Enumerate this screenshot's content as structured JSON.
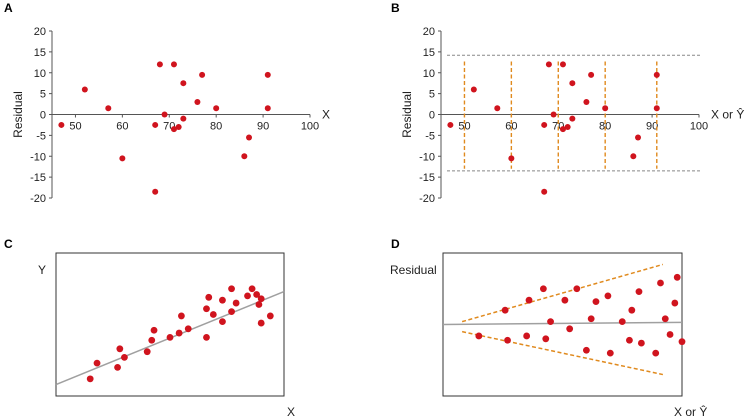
{
  "chart_data": [
    {
      "panel": "A",
      "type": "scatter",
      "xlabel": "X",
      "ylabel": "Residual",
      "xlim": [
        45,
        100
      ],
      "ylim": [
        -20,
        20
      ],
      "xticks": [
        50,
        60,
        70,
        80,
        90,
        100
      ],
      "yticks": [
        -20,
        -15,
        -10,
        -5,
        0,
        5,
        10,
        15,
        20
      ],
      "points": [
        [
          47,
          -2.5
        ],
        [
          52,
          6
        ],
        [
          57,
          1.5
        ],
        [
          60,
          -10.5
        ],
        [
          67,
          -18.5
        ],
        [
          67,
          -2.5
        ],
        [
          68,
          12
        ],
        [
          69,
          0
        ],
        [
          71,
          12
        ],
        [
          71,
          -3.5
        ],
        [
          72,
          -3
        ],
        [
          73,
          -1
        ],
        [
          73,
          7.5
        ],
        [
          76,
          3
        ],
        [
          77,
          9.5
        ],
        [
          80,
          1.5
        ],
        [
          86,
          -10
        ],
        [
          87,
          -5.5
        ],
        [
          91,
          9.5
        ],
        [
          91,
          1.5
        ]
      ]
    },
    {
      "panel": "B",
      "type": "scatter",
      "xlabel": "X or Ŷ",
      "ylabel": "Residual",
      "xlim": [
        45,
        100
      ],
      "ylim": [
        -20,
        20
      ],
      "xticks": [
        50,
        60,
        70,
        80,
        90,
        100
      ],
      "yticks": [
        -20,
        -15,
        -10,
        -5,
        0,
        5,
        10,
        15,
        20
      ],
      "band": [
        -13.5,
        14.2
      ],
      "band_lines": [
        50,
        60,
        70,
        80,
        91
      ],
      "points": [
        [
          47,
          -2.5
        ],
        [
          52,
          6
        ],
        [
          57,
          1.5
        ],
        [
          60,
          -10.5
        ],
        [
          67,
          -18.5
        ],
        [
          67,
          -2.5
        ],
        [
          68,
          12
        ],
        [
          69,
          0
        ],
        [
          71,
          12
        ],
        [
          71,
          -3.5
        ],
        [
          72,
          -3
        ],
        [
          73,
          -1
        ],
        [
          73,
          7.5
        ],
        [
          76,
          3
        ],
        [
          77,
          9.5
        ],
        [
          80,
          1.5
        ],
        [
          86,
          -10
        ],
        [
          87,
          -5.5
        ],
        [
          91,
          9.5
        ],
        [
          91,
          1.5
        ]
      ]
    },
    {
      "panel": "C",
      "type": "scatter",
      "xlabel": "X",
      "ylabel": "Y",
      "xlim": [
        0,
        10
      ],
      "ylim": [
        0,
        10
      ],
      "fit_line": [
        [
          0,
          0.8
        ],
        [
          10,
          7.3
        ]
      ],
      "points": [
        [
          1.5,
          1.2
        ],
        [
          1.8,
          2.3
        ],
        [
          2.7,
          2
        ],
        [
          2.8,
          3.3
        ],
        [
          3.0,
          2.7
        ],
        [
          4.0,
          3.1
        ],
        [
          4.2,
          3.9
        ],
        [
          4.3,
          4.6
        ],
        [
          5.0,
          4.1
        ],
        [
          5.4,
          4.4
        ],
        [
          5.5,
          5.6
        ],
        [
          5.8,
          4.7
        ],
        [
          6.6,
          4.1
        ],
        [
          6.6,
          6.1
        ],
        [
          6.9,
          5.7
        ],
        [
          6.7,
          6.9
        ],
        [
          7.3,
          5.2
        ],
        [
          7.3,
          6.7
        ],
        [
          7.7,
          5.9
        ],
        [
          7.7,
          7.5
        ],
        [
          7.9,
          6.5
        ],
        [
          8.4,
          7.0
        ],
        [
          8.6,
          7.5
        ],
        [
          8.8,
          7.1
        ],
        [
          8.9,
          6.4
        ],
        [
          9.0,
          6.8
        ],
        [
          9.0,
          5.1
        ],
        [
          9.4,
          5.6
        ]
      ]
    },
    {
      "panel": "D",
      "type": "scatter",
      "xlabel": "X or Ŷ",
      "ylabel": "Residual",
      "xlim": [
        0,
        10
      ],
      "ylim": [
        -5,
        5
      ],
      "fit_line": [
        [
          0,
          0
        ],
        [
          10,
          0.15
        ]
      ],
      "fan_upper": [
        [
          0.8,
          0.2
        ],
        [
          9.2,
          4.2
        ]
      ],
      "fan_lower": [
        [
          0.8,
          -0.5
        ],
        [
          9.2,
          -3.5
        ]
      ],
      "points": [
        [
          1.5,
          -0.8
        ],
        [
          2.6,
          1.0
        ],
        [
          2.7,
          -1.1
        ],
        [
          3.5,
          -0.8
        ],
        [
          3.6,
          1.7
        ],
        [
          4.2,
          2.5
        ],
        [
          4.3,
          -1.0
        ],
        [
          4.5,
          0.2
        ],
        [
          5.1,
          1.7
        ],
        [
          5.3,
          -0.3
        ],
        [
          5.6,
          2.5
        ],
        [
          6.0,
          -1.8
        ],
        [
          6.2,
          0.4
        ],
        [
          6.4,
          1.6
        ],
        [
          6.9,
          2.0
        ],
        [
          7.0,
          -2.0
        ],
        [
          7.5,
          0.2
        ],
        [
          7.8,
          -1.1
        ],
        [
          7.9,
          1.0
        ],
        [
          8.2,
          2.3
        ],
        [
          8.3,
          -1.3
        ],
        [
          8.9,
          -2.0
        ],
        [
          9.1,
          2.9
        ],
        [
          9.3,
          0.4
        ],
        [
          9.5,
          -0.7
        ],
        [
          9.7,
          1.5
        ],
        [
          9.8,
          3.3
        ],
        [
          10.0,
          -1.2
        ]
      ]
    }
  ]
}
